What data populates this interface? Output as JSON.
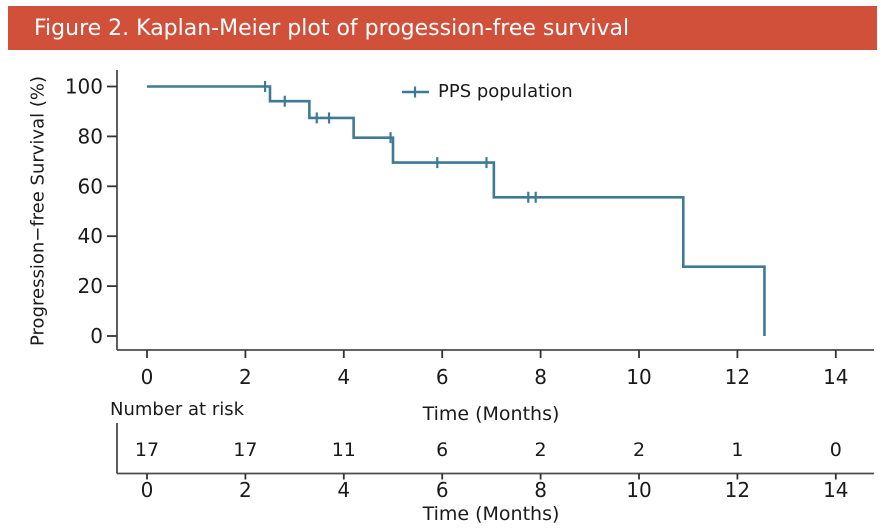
{
  "header": {
    "title": "Figure 2. Kaplan-Meier plot of progession-free survival",
    "bg_color": "#d0503a",
    "text_color": "#ffffff"
  },
  "chart_data": {
    "type": "line",
    "subtype": "kaplan-meier-step",
    "title": "",
    "xlabel": "Time (Months)",
    "ylabel": "Progression−free Survival (%)",
    "xlim": [
      0,
      14
    ],
    "ylim": [
      0,
      100
    ],
    "xticks": [
      0,
      2,
      4,
      6,
      8,
      10,
      12,
      14
    ],
    "yticks": [
      0,
      20,
      40,
      60,
      80,
      100
    ],
    "grid": false,
    "legend": {
      "label": "PPS population",
      "position": "top-center-inside"
    },
    "colors": {
      "curve": "#3d7a96",
      "axis": "#4d4d4d",
      "text": "#1a1a1a"
    },
    "series": [
      {
        "name": "PPS population",
        "step_points": [
          [
            0,
            100
          ],
          [
            2.5,
            100
          ],
          [
            2.5,
            94.1
          ],
          [
            3.3,
            94.1
          ],
          [
            3.3,
            87.4
          ],
          [
            4.2,
            87.4
          ],
          [
            4.2,
            79.5
          ],
          [
            5.0,
            79.5
          ],
          [
            5.0,
            69.5
          ],
          [
            7.05,
            69.5
          ],
          [
            7.05,
            55.6
          ],
          [
            10.9,
            55.6
          ],
          [
            10.9,
            27.8
          ],
          [
            12.55,
            27.8
          ],
          [
            12.55,
            0
          ]
        ],
        "censor_marks": [
          [
            2.4,
            100
          ],
          [
            2.8,
            94.1
          ],
          [
            3.45,
            87.4
          ],
          [
            3.7,
            87.4
          ],
          [
            4.95,
            79.5
          ],
          [
            5.9,
            69.5
          ],
          [
            6.9,
            69.5
          ],
          [
            7.75,
            55.6
          ],
          [
            7.9,
            55.6
          ]
        ]
      }
    ]
  },
  "risk_table": {
    "label": "Number at risk",
    "xlabel": "Time (Months)",
    "times": [
      0,
      2,
      4,
      6,
      8,
      10,
      12,
      14
    ],
    "values": [
      17,
      17,
      11,
      6,
      2,
      2,
      1,
      0
    ]
  }
}
